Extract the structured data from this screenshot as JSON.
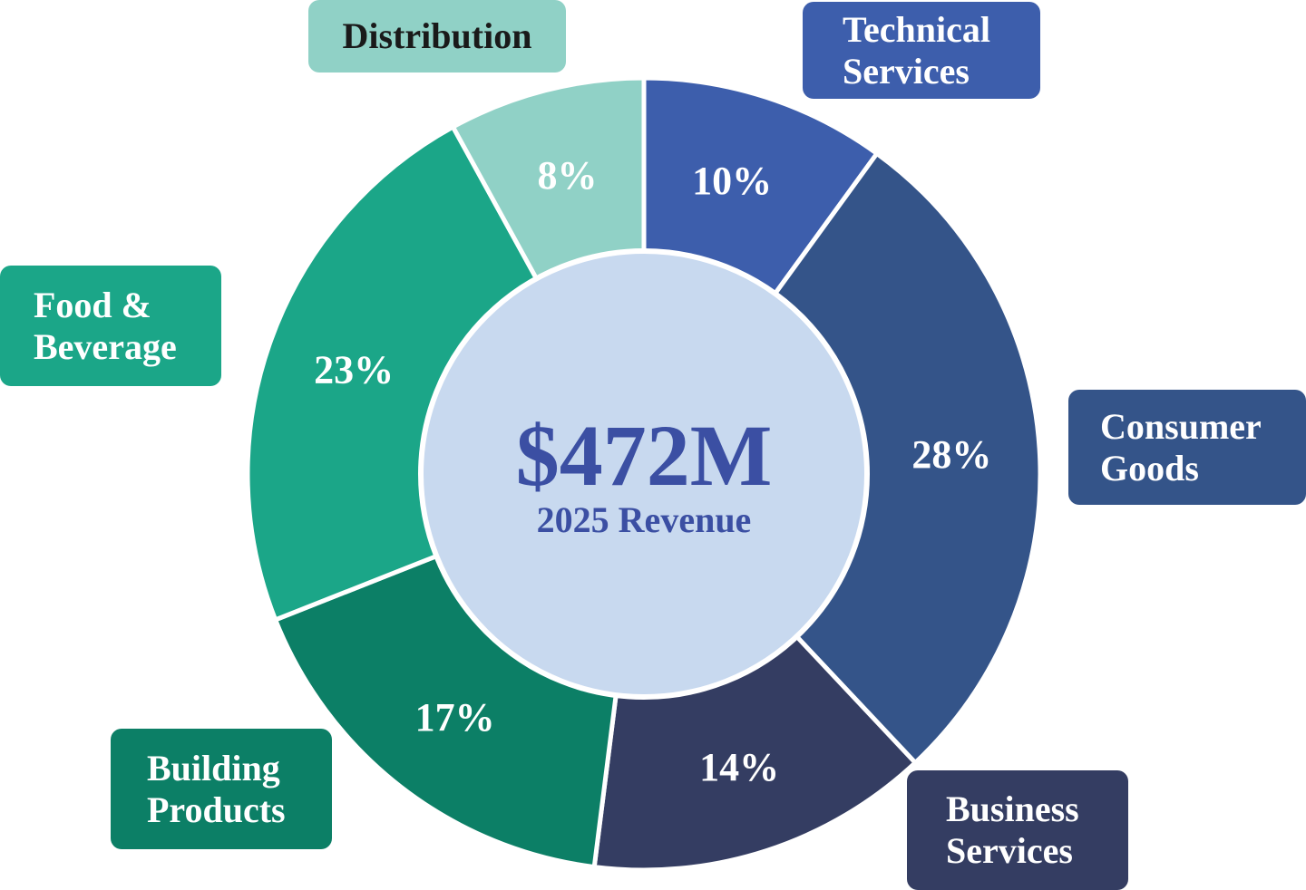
{
  "chart_data": {
    "type": "pie",
    "variant": "donut",
    "title": "",
    "center": {
      "value": "$472M",
      "label": "2025 Revenue"
    },
    "slices": [
      {
        "name": "Technical Services",
        "label_lines": [
          "Technical",
          "Services"
        ],
        "value": 10,
        "value_label": "10%",
        "color": "#3D5EAC",
        "label_text_color": "#ffffff"
      },
      {
        "name": "Consumer Goods",
        "label_lines": [
          "Consumer",
          "Goods"
        ],
        "value": 28,
        "value_label": "28%",
        "color": "#345489",
        "label_text_color": "#ffffff"
      },
      {
        "name": "Business Services",
        "label_lines": [
          "Business",
          "Services"
        ],
        "value": 14,
        "value_label": "14%",
        "color": "#343D62",
        "label_text_color": "#ffffff"
      },
      {
        "name": "Building Products",
        "label_lines": [
          "Building",
          "Products"
        ],
        "value": 17,
        "value_label": "17%",
        "color": "#0C7F66",
        "label_text_color": "#ffffff"
      },
      {
        "name": "Food & Beverage",
        "label_lines": [
          "Food &",
          "Beverage"
        ],
        "value": 23,
        "value_label": "23%",
        "color": "#1BA688",
        "label_text_color": "#ffffff"
      },
      {
        "name": "Distribution",
        "label_lines": [
          "Distribution"
        ],
        "value": 8,
        "value_label": "8%",
        "color": "#90D1C6",
        "label_text_color": "#1a1a1a"
      }
    ],
    "colors": {
      "center_fill": "#C8D9EF",
      "center_text": "#3B4FA3",
      "separator": "#ffffff"
    }
  }
}
